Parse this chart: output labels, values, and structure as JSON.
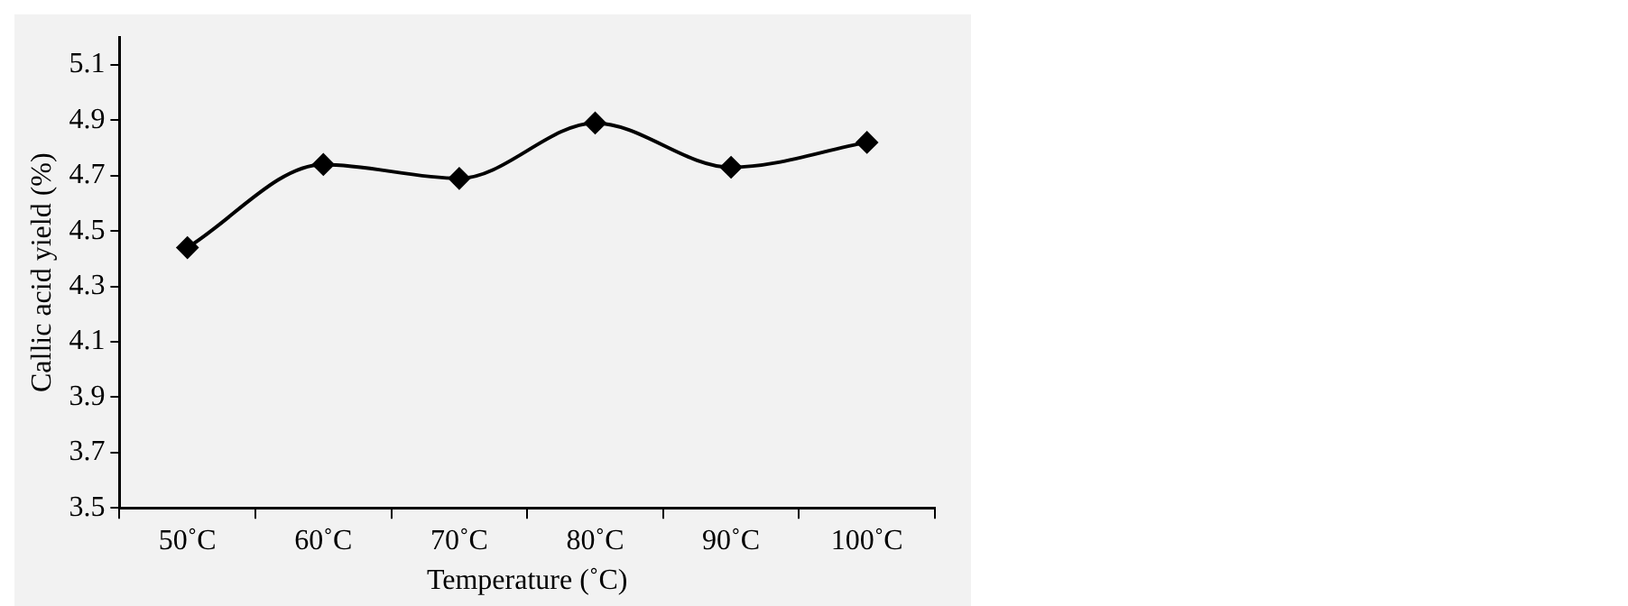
{
  "chart_data": {
    "type": "line",
    "xlabel": "Temperature (˚C)",
    "ylabel": "Callic acid yield (%)",
    "categories": [
      "50˚C",
      "60˚C",
      "70˚C",
      "80˚C",
      "90˚C",
      "100˚C"
    ],
    "series": [
      {
        "color": "#000000",
        "values": [
          4.44,
          4.74,
          4.69,
          4.89,
          4.73,
          4.82
        ]
      }
    ],
    "ylim": [
      3.5,
      5.2
    ],
    "yticks": [
      3.5,
      3.7,
      3.9,
      4.1,
      4.3,
      4.5,
      4.7,
      4.9,
      5.1
    ],
    "grid": false,
    "legend": false,
    "marker": "diamond",
    "line_style": "solid"
  }
}
